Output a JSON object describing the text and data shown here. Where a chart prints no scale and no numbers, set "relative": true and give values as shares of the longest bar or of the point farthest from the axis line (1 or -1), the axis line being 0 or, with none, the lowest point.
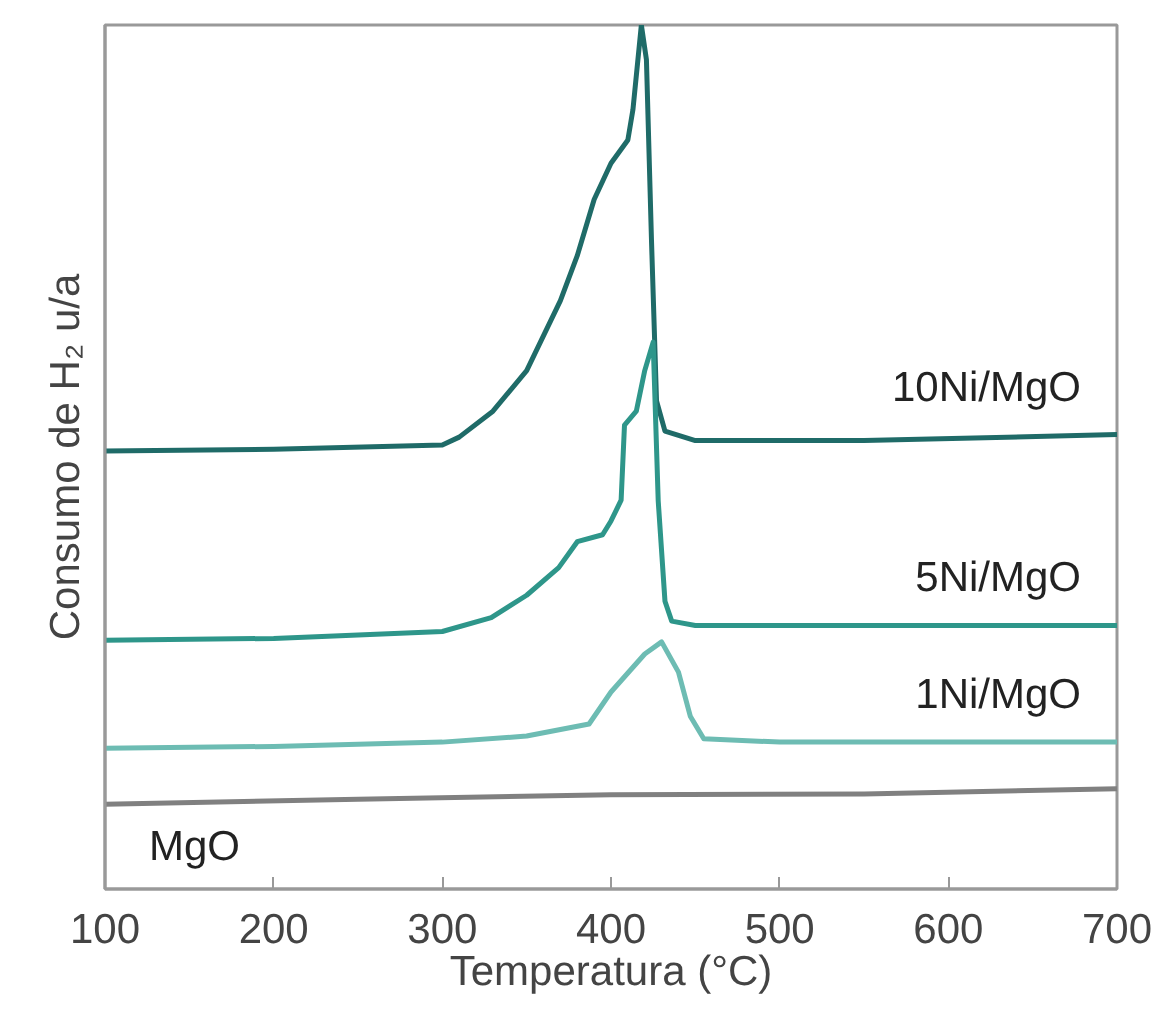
{
  "chart_data": {
    "type": "line",
    "relative": true,
    "xlabel": "Temperatura (°C)",
    "ylabel": "Consumo de H₂ u/a",
    "xlim": [
      100,
      700
    ],
    "xticks": [
      100,
      200,
      300,
      400,
      500,
      600,
      700
    ],
    "series": [
      {
        "name": "10Ni/MgO",
        "color": "#1f6b68",
        "x": [
          100,
          200,
          300,
          310,
          330,
          350,
          370,
          380,
          390,
          400,
          410,
          413,
          418,
          421,
          424,
          427,
          432,
          450,
          550,
          700
        ],
        "values": [
          0.507,
          0.509,
          0.514,
          0.523,
          0.553,
          0.6,
          0.681,
          0.733,
          0.798,
          0.84,
          0.867,
          0.902,
          1.0,
          0.96,
          0.751,
          0.565,
          0.53,
          0.519,
          0.519,
          0.526
        ]
      },
      {
        "name": "5Ni/MgO",
        "color": "#2e968a",
        "x": [
          100,
          200,
          300,
          329,
          350,
          369,
          380,
          395,
          400,
          406,
          408,
          415,
          420,
          425,
          428,
          432,
          436,
          450,
          700
        ],
        "values": [
          0.288,
          0.29,
          0.298,
          0.314,
          0.34,
          0.372,
          0.402,
          0.41,
          0.426,
          0.45,
          0.537,
          0.553,
          0.6,
          0.633,
          0.449,
          0.333,
          0.31,
          0.305,
          0.305
        ]
      },
      {
        "name": "1Ni/MgO",
        "color": "#6dbcb3",
        "x": [
          100,
          200,
          300,
          350,
          387,
          400,
          420,
          430,
          440,
          447,
          455,
          500,
          700
        ],
        "values": [
          0.163,
          0.165,
          0.17,
          0.177,
          0.191,
          0.228,
          0.272,
          0.286,
          0.251,
          0.2,
          0.174,
          0.17,
          0.17
        ]
      },
      {
        "name": "MgO",
        "color": "#808080",
        "x": [
          100,
          250,
          400,
          550,
          700
        ],
        "values": [
          0.098,
          0.104,
          0.109,
          0.11,
          0.116
        ]
      }
    ]
  }
}
